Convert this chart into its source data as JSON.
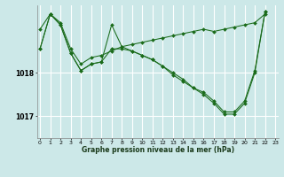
{
  "background_color": "#cce8e8",
  "plot_bg_color": "#cce8e8",
  "grid_color": "#ffffff",
  "line_color": "#1a6b1a",
  "marker_color": "#1a6b1a",
  "xlabel": "Graphe pression niveau de la mer (hPa)",
  "yticks": [
    1017,
    1018
  ],
  "xticks": [
    0,
    1,
    2,
    3,
    4,
    5,
    6,
    7,
    8,
    9,
    10,
    11,
    12,
    13,
    14,
    15,
    16,
    17,
    18,
    19,
    20,
    21,
    22,
    23
  ],
  "ylim": [
    1016.5,
    1019.55
  ],
  "xlim": [
    -0.3,
    23.3
  ],
  "series": [
    [
      1019.0,
      1019.35,
      1019.15,
      1018.55,
      1018.2,
      1018.35,
      1018.4,
      1018.5,
      1018.6,
      1018.65,
      1018.7,
      1018.75,
      1018.8,
      1018.85,
      1018.9,
      1018.95,
      1019.0,
      1018.95,
      1019.0,
      1019.05,
      1019.1,
      1019.15,
      1019.35,
      null
    ],
    [
      1018.55,
      1019.35,
      1019.1,
      1018.45,
      1018.05,
      1018.2,
      1018.25,
      1019.1,
      1018.6,
      1018.5,
      1018.4,
      1018.3,
      1018.15,
      1018.0,
      1017.85,
      1017.65,
      1017.55,
      1017.35,
      1017.1,
      1017.1,
      1017.35,
      1018.05,
      1019.4,
      null
    ],
    [
      1018.55,
      1019.35,
      1019.1,
      1018.45,
      1018.05,
      1018.2,
      1018.25,
      1018.55,
      1018.55,
      1018.5,
      1018.4,
      1018.3,
      1018.15,
      1017.95,
      1017.8,
      1017.65,
      1017.5,
      1017.3,
      1017.05,
      1017.05,
      1017.3,
      1018.0,
      1019.4,
      null
    ]
  ]
}
